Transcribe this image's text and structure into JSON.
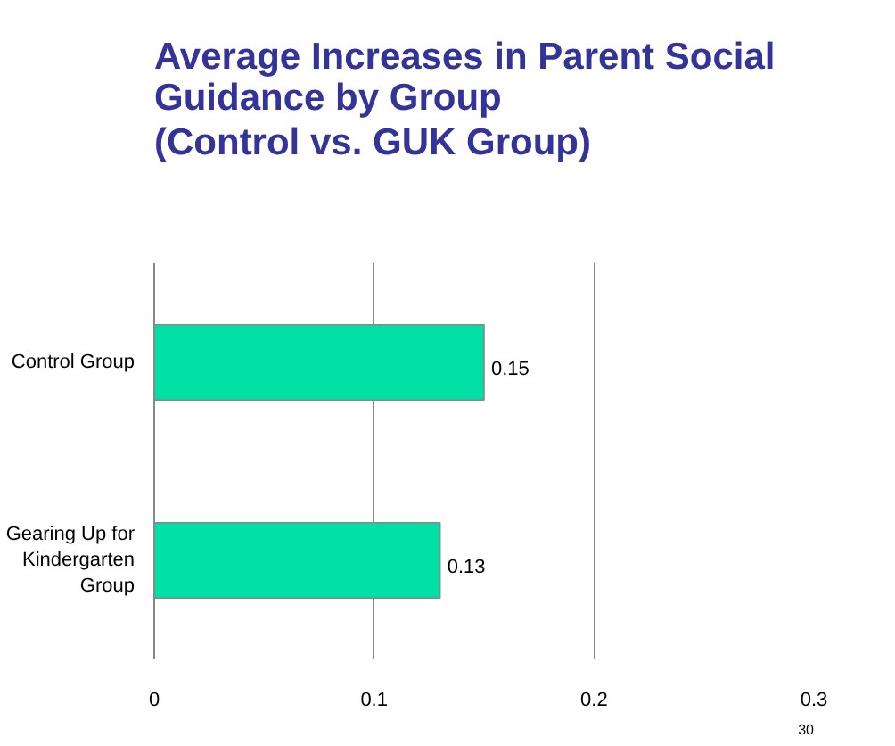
{
  "chart_data": {
    "type": "bar",
    "orientation": "horizontal",
    "title": "Average Increases in Parent Social Guidance by Group",
    "subtitle": "(Control vs. GUK Group)",
    "categories": [
      "Control Group",
      "Gearing Up for Kindergarten Group"
    ],
    "values": [
      0.15,
      0.13
    ],
    "color": "#00e0a4",
    "xlim": [
      0,
      0.3
    ],
    "xticks": [
      0,
      0.1,
      0.2,
      0.3
    ],
    "grid": "x",
    "data_labels": true,
    "annotations": [
      "30"
    ]
  }
}
